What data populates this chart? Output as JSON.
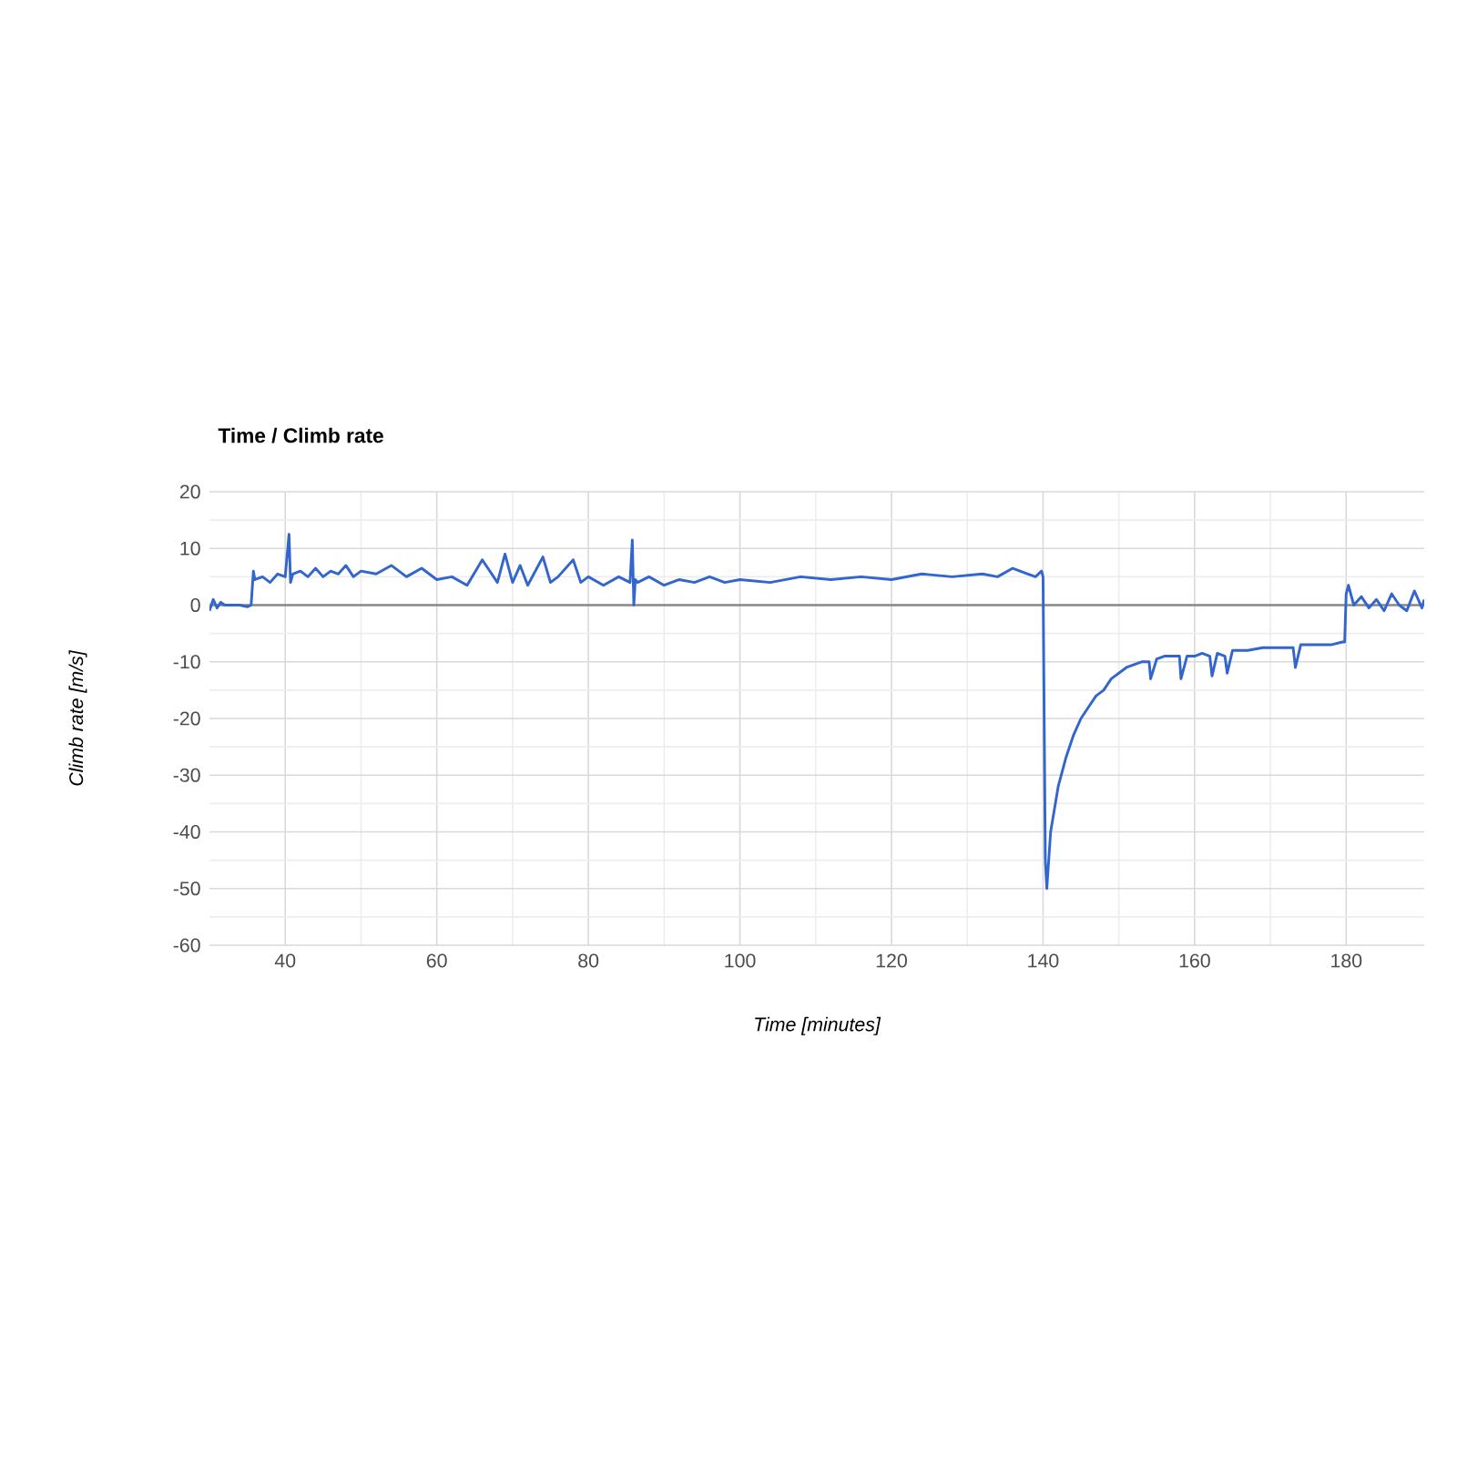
{
  "chart_data": {
    "type": "line",
    "title": "Time / Climb rate",
    "xlabel": "Time [minutes]",
    "ylabel": "Climb rate [m/s]",
    "xlim": [
      30,
      190.3
    ],
    "ylim": [
      -60,
      20
    ],
    "xticks": [
      40,
      60,
      80,
      100,
      120,
      140,
      160,
      180
    ],
    "yticks": [
      -60,
      -50,
      -40,
      -30,
      -20,
      -10,
      0,
      10,
      20
    ],
    "grid": true,
    "marker": "none",
    "line_style": "solid",
    "ref_lines": [
      {
        "axis": "y",
        "value": 0,
        "color": "#888888"
      }
    ],
    "series": [
      {
        "color": "#3366cc",
        "x": [
          30,
          30.5,
          31,
          31.5,
          32,
          33,
          34,
          35,
          35.5,
          35.8,
          36,
          37,
          38,
          39,
          40,
          40.5,
          40.7,
          41,
          42,
          43,
          44,
          45,
          46,
          47,
          48,
          49,
          50,
          52,
          54,
          56,
          58,
          60,
          62,
          64,
          66,
          68,
          69,
          70,
          71,
          72,
          74,
          75,
          76,
          78,
          79,
          80,
          82,
          84,
          85.5,
          85.8,
          86,
          86.2,
          86.5,
          88,
          90,
          92,
          94,
          96,
          98,
          100,
          104,
          108,
          112,
          116,
          120,
          124,
          128,
          132,
          134,
          136,
          138,
          139,
          139.8,
          140,
          140.3,
          140.5,
          141,
          142,
          143,
          144,
          145,
          146,
          147,
          148,
          149,
          150,
          151,
          152,
          153,
          154,
          154.2,
          155,
          156,
          157,
          158,
          158.2,
          159,
          160,
          161,
          162,
          162.3,
          163,
          164,
          164.3,
          165,
          167,
          169,
          171,
          173,
          173.3,
          174,
          176,
          178,
          179.5,
          179.8,
          180,
          180.3,
          181,
          182,
          183,
          184,
          185,
          186,
          187,
          188,
          189,
          190,
          190.3
        ],
        "values": [
          -1,
          1,
          -0.5,
          0.5,
          0,
          0,
          0,
          -0.3,
          0,
          6,
          4.5,
          5,
          4,
          5.5,
          5,
          12.5,
          4,
          5.5,
          6,
          5,
          6.5,
          5,
          6,
          5.5,
          7,
          5,
          6,
          5.5,
          7,
          5,
          6.5,
          4.5,
          5,
          3.5,
          8,
          4,
          9,
          4,
          7,
          3.5,
          8.5,
          4,
          5,
          8,
          4,
          5,
          3.5,
          5,
          4,
          11.5,
          0,
          4.5,
          4,
          5,
          3.5,
          4.5,
          4,
          5,
          4,
          4.5,
          4,
          5,
          4.5,
          5,
          4.5,
          5.5,
          5,
          5.5,
          5,
          6.5,
          5.5,
          5,
          6,
          5,
          -45,
          -50,
          -40,
          -32,
          -27,
          -23,
          -20,
          -18,
          -16,
          -15,
          -13,
          -12,
          -11,
          -10.5,
          -10,
          -10,
          -13,
          -9.5,
          -9,
          -9,
          -9,
          -13,
          -9,
          -9,
          -8.5,
          -9,
          -12.5,
          -8.5,
          -9,
          -12,
          -8,
          -8,
          -7.5,
          -7.5,
          -7.5,
          -11,
          -7,
          -7,
          -7,
          -6.5,
          -6.5,
          2,
          3.5,
          0,
          1.5,
          -0.5,
          1,
          -1,
          2,
          0,
          -1,
          2.5,
          -0.5,
          1
        ]
      }
    ]
  }
}
